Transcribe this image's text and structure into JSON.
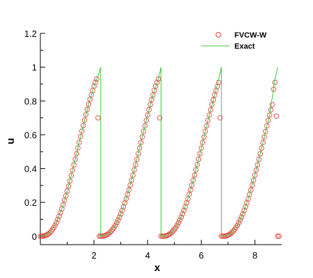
{
  "chart_data": {
    "type": "scatter",
    "xlabel": "x",
    "ylabel": "u",
    "xlim": [
      0,
      9
    ],
    "ylim": [
      -0.05,
      1.2
    ],
    "x_ticks": [
      2,
      4,
      6,
      8
    ],
    "x_tick_labels": [
      "2",
      "4",
      "6",
      "8"
    ],
    "y_ticks": [
      0,
      0.2,
      0.4,
      0.6,
      0.8,
      1,
      1.2
    ],
    "y_tick_labels": [
      "0",
      "0.2",
      "0.4",
      "0.6",
      "0.8",
      "1",
      "1.2"
    ],
    "legend_position": "top-right",
    "grid": false,
    "series": [
      {
        "name": "FVCW-W",
        "marker": "open-circle",
        "color": "#e8413c",
        "points": [
          [
            0.0,
            0.0
          ],
          [
            0.05,
            0.0
          ],
          [
            0.1,
            0.0
          ],
          [
            0.15,
            0.002
          ],
          [
            0.2,
            0.005
          ],
          [
            0.25,
            0.008
          ],
          [
            0.3,
            0.013
          ],
          [
            0.35,
            0.02
          ],
          [
            0.4,
            0.028
          ],
          [
            0.45,
            0.039
          ],
          [
            0.5,
            0.051
          ],
          [
            0.55,
            0.065
          ],
          [
            0.6,
            0.081
          ],
          [
            0.65,
            0.099
          ],
          [
            0.7,
            0.118
          ],
          [
            0.75,
            0.139
          ],
          [
            0.8,
            0.162
          ],
          [
            0.85,
            0.186
          ],
          [
            0.9,
            0.212
          ],
          [
            0.95,
            0.239
          ],
          [
            1.0,
            0.267
          ],
          [
            1.05,
            0.296
          ],
          [
            1.1,
            0.327
          ],
          [
            1.15,
            0.358
          ],
          [
            1.2,
            0.39
          ],
          [
            1.25,
            0.422
          ],
          [
            1.3,
            0.455
          ],
          [
            1.35,
            0.488
          ],
          [
            1.4,
            0.522
          ],
          [
            1.45,
            0.555
          ],
          [
            1.5,
            0.589
          ],
          [
            1.55,
            0.622
          ],
          [
            1.6,
            0.655
          ],
          [
            1.65,
            0.687
          ],
          [
            1.7,
            0.719
          ],
          [
            1.75,
            0.75
          ],
          [
            1.8,
            0.78
          ],
          [
            1.85,
            0.809
          ],
          [
            1.9,
            0.836
          ],
          [
            1.95,
            0.862
          ],
          [
            2.0,
            0.887
          ],
          [
            2.05,
            0.91
          ],
          [
            2.1,
            0.93
          ],
          [
            2.15,
            0.7
          ],
          [
            2.2,
            0.0
          ],
          [
            2.25,
            0.0
          ],
          [
            2.3,
            0.0
          ],
          [
            2.35,
            0.001
          ],
          [
            2.4,
            0.003
          ],
          [
            2.45,
            0.006
          ],
          [
            2.5,
            0.01
          ],
          [
            2.55,
            0.016
          ],
          [
            2.6,
            0.023
          ],
          [
            2.65,
            0.031
          ],
          [
            2.7,
            0.041
          ],
          [
            2.75,
            0.052
          ],
          [
            2.8,
            0.065
          ],
          [
            2.85,
            0.08
          ],
          [
            2.9,
            0.096
          ],
          [
            2.95,
            0.113
          ],
          [
            3.0,
            0.132
          ],
          [
            3.05,
            0.152
          ],
          [
            3.1,
            0.174
          ],
          [
            3.15,
            0.197
          ],
          [
            3.2,
            0.221
          ],
          [
            3.25,
            0.247
          ],
          [
            3.3,
            0.274
          ],
          [
            3.35,
            0.302
          ],
          [
            3.4,
            0.331
          ],
          [
            3.45,
            0.361
          ],
          [
            3.5,
            0.392
          ],
          [
            3.55,
            0.423
          ],
          [
            3.6,
            0.455
          ],
          [
            3.65,
            0.488
          ],
          [
            3.7,
            0.521
          ],
          [
            3.75,
            0.554
          ],
          [
            3.8,
            0.587
          ],
          [
            3.85,
            0.62
          ],
          [
            3.9,
            0.653
          ],
          [
            3.95,
            0.685
          ],
          [
            4.0,
            0.717
          ],
          [
            4.05,
            0.748
          ],
          [
            4.1,
            0.778
          ],
          [
            4.15,
            0.807
          ],
          [
            4.2,
            0.835
          ],
          [
            4.25,
            0.862
          ],
          [
            4.3,
            0.887
          ],
          [
            4.35,
            0.91
          ],
          [
            4.4,
            0.93
          ],
          [
            4.45,
            0.7
          ],
          [
            4.5,
            0.0
          ],
          [
            4.55,
            0.0
          ],
          [
            4.6,
            0.0
          ],
          [
            4.65,
            0.001
          ],
          [
            4.7,
            0.003
          ],
          [
            4.75,
            0.006
          ],
          [
            4.8,
            0.01
          ],
          [
            4.85,
            0.016
          ],
          [
            4.9,
            0.023
          ],
          [
            4.95,
            0.031
          ],
          [
            5.0,
            0.041
          ],
          [
            5.05,
            0.052
          ],
          [
            5.1,
            0.065
          ],
          [
            5.15,
            0.08
          ],
          [
            5.2,
            0.096
          ],
          [
            5.25,
            0.113
          ],
          [
            5.3,
            0.132
          ],
          [
            5.35,
            0.152
          ],
          [
            5.4,
            0.174
          ],
          [
            5.45,
            0.197
          ],
          [
            5.5,
            0.221
          ],
          [
            5.55,
            0.247
          ],
          [
            5.6,
            0.274
          ],
          [
            5.65,
            0.302
          ],
          [
            5.7,
            0.331
          ],
          [
            5.75,
            0.361
          ],
          [
            5.8,
            0.392
          ],
          [
            5.85,
            0.423
          ],
          [
            5.9,
            0.455
          ],
          [
            5.95,
            0.488
          ],
          [
            6.0,
            0.521
          ],
          [
            6.05,
            0.554
          ],
          [
            6.1,
            0.587
          ],
          [
            6.15,
            0.62
          ],
          [
            6.2,
            0.653
          ],
          [
            6.25,
            0.685
          ],
          [
            6.3,
            0.717
          ],
          [
            6.35,
            0.748
          ],
          [
            6.4,
            0.778
          ],
          [
            6.45,
            0.807
          ],
          [
            6.5,
            0.835
          ],
          [
            6.55,
            0.862
          ],
          [
            6.6,
            0.887
          ],
          [
            6.65,
            0.91
          ],
          [
            6.7,
            0.7
          ],
          [
            6.75,
            0.0
          ],
          [
            6.8,
            0.0
          ],
          [
            6.85,
            0.0
          ],
          [
            6.9,
            0.001
          ],
          [
            6.95,
            0.003
          ],
          [
            7.0,
            0.006
          ],
          [
            7.05,
            0.01
          ],
          [
            7.1,
            0.016
          ],
          [
            7.15,
            0.023
          ],
          [
            7.2,
            0.031
          ],
          [
            7.25,
            0.041
          ],
          [
            7.3,
            0.052
          ],
          [
            7.35,
            0.065
          ],
          [
            7.4,
            0.08
          ],
          [
            7.45,
            0.096
          ],
          [
            7.5,
            0.113
          ],
          [
            7.55,
            0.132
          ],
          [
            7.6,
            0.152
          ],
          [
            7.65,
            0.174
          ],
          [
            7.7,
            0.197
          ],
          [
            7.75,
            0.221
          ],
          [
            7.8,
            0.247
          ],
          [
            7.85,
            0.274
          ],
          [
            7.9,
            0.302
          ],
          [
            7.95,
            0.331
          ],
          [
            8.0,
            0.361
          ],
          [
            8.05,
            0.392
          ],
          [
            8.1,
            0.423
          ],
          [
            8.15,
            0.455
          ],
          [
            8.2,
            0.488
          ],
          [
            8.25,
            0.521
          ],
          [
            8.3,
            0.554
          ],
          [
            8.35,
            0.587
          ],
          [
            8.4,
            0.62
          ],
          [
            8.45,
            0.653
          ],
          [
            8.5,
            0.685
          ],
          [
            8.55,
            0.717
          ],
          [
            8.6,
            0.748
          ],
          [
            8.65,
            0.778
          ],
          [
            8.7,
            0.87
          ],
          [
            8.75,
            0.91
          ],
          [
            8.8,
            0.71
          ],
          [
            8.85,
            0.0
          ],
          [
            8.9,
            0.0
          ]
        ]
      },
      {
        "name": "Exact",
        "marker": "line",
        "color": "#3cc83c",
        "points": [
          [
            0.0,
            0.0
          ],
          [
            0.2,
            0.006
          ],
          [
            0.4,
            0.03
          ],
          [
            0.6,
            0.081
          ],
          [
            0.8,
            0.162
          ],
          [
            1.0,
            0.267
          ],
          [
            1.2,
            0.39
          ],
          [
            1.4,
            0.522
          ],
          [
            1.6,
            0.655
          ],
          [
            1.8,
            0.78
          ],
          [
            2.0,
            0.887
          ],
          [
            2.1,
            0.93
          ],
          [
            2.18,
            0.96
          ],
          [
            2.25,
            1.0
          ],
          [
            2.25,
            0.0
          ],
          [
            2.4,
            0.003
          ],
          [
            2.6,
            0.023
          ],
          [
            2.8,
            0.065
          ],
          [
            3.0,
            0.132
          ],
          [
            3.2,
            0.221
          ],
          [
            3.4,
            0.331
          ],
          [
            3.6,
            0.455
          ],
          [
            3.8,
            0.587
          ],
          [
            4.0,
            0.717
          ],
          [
            4.2,
            0.835
          ],
          [
            4.4,
            0.93
          ],
          [
            4.5,
            1.0
          ],
          [
            4.5,
            0.0
          ],
          [
            4.7,
            0.003
          ],
          [
            4.9,
            0.023
          ],
          [
            5.1,
            0.065
          ],
          [
            5.3,
            0.132
          ],
          [
            5.5,
            0.221
          ],
          [
            5.7,
            0.331
          ],
          [
            5.9,
            0.455
          ],
          [
            6.1,
            0.587
          ],
          [
            6.3,
            0.717
          ],
          [
            6.5,
            0.835
          ],
          [
            6.65,
            0.93
          ],
          [
            6.75,
            1.0
          ],
          [
            6.75,
            0.0
          ],
          [
            6.95,
            0.003
          ],
          [
            7.15,
            0.023
          ],
          [
            7.35,
            0.065
          ],
          [
            7.55,
            0.132
          ],
          [
            7.75,
            0.221
          ],
          [
            7.95,
            0.331
          ],
          [
            8.15,
            0.455
          ],
          [
            8.35,
            0.587
          ],
          [
            8.55,
            0.717
          ],
          [
            8.75,
            0.93
          ],
          [
            8.85,
            1.0
          ]
        ]
      }
    ]
  }
}
